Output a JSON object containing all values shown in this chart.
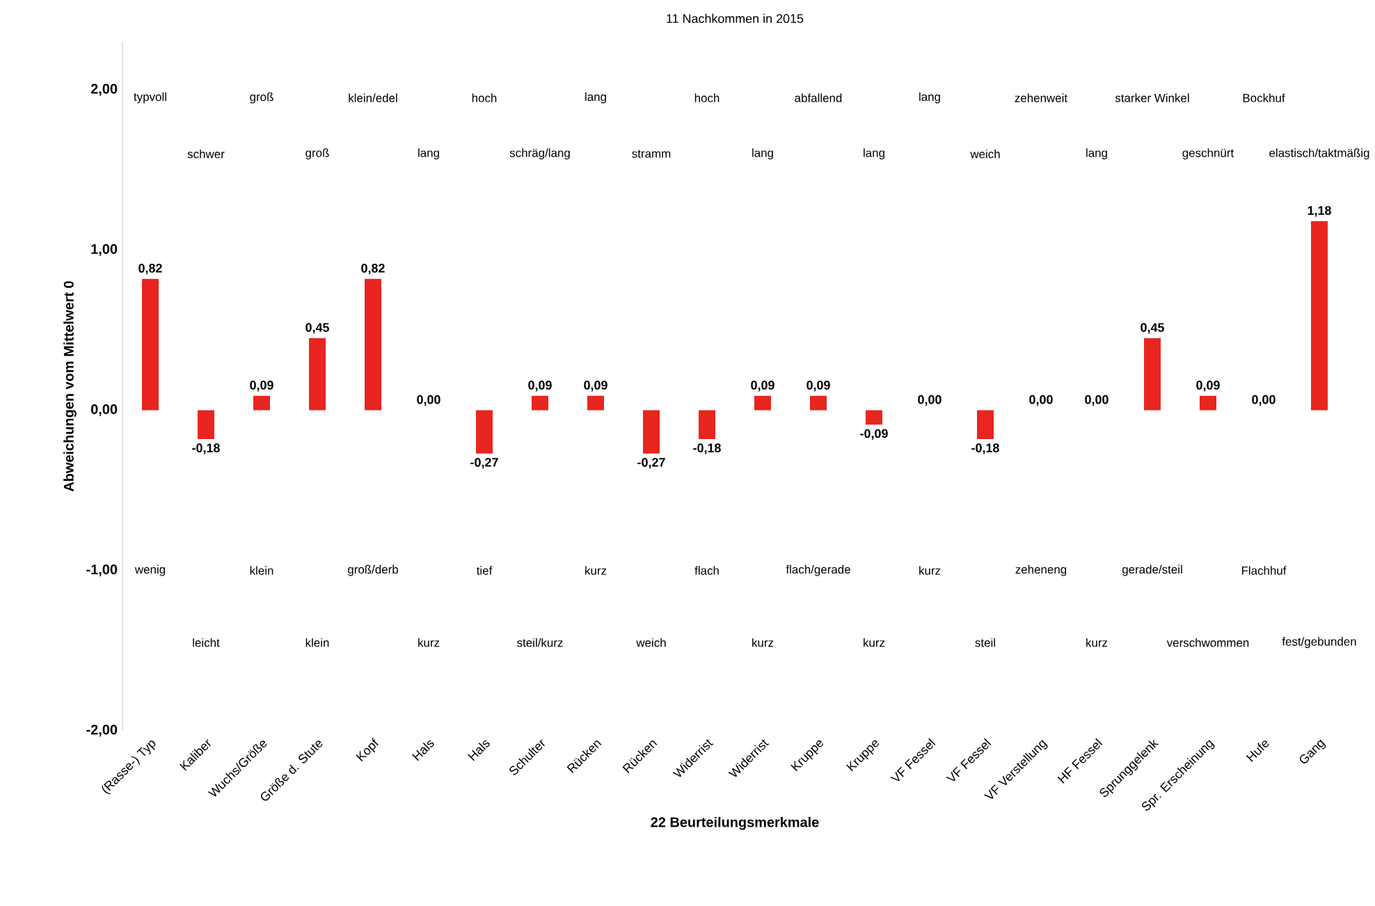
{
  "chart_data": {
    "type": "bar",
    "title": "11 Nachkommen in 2015",
    "xlabel": "22 Beurteilungsmerkmale",
    "ylabel": "Abweichungen vom Mittelwert 0",
    "categories": [
      "(Rasse-) Typ",
      "Kaliber",
      "Wuchs/Größe",
      "Größe d. Stute",
      "Kopf",
      "Hals",
      "Hals",
      "Schulter",
      "Rücken",
      "Rücken",
      "Widerrist",
      "Widerrist",
      "Kruppe",
      "Kruppe",
      "VF Fessel",
      "VF Fessel",
      "VF Verstellung",
      "HF Fessel",
      "Sprunggelenk",
      "Spr. Erscheinung",
      "Hufe",
      "Gang"
    ],
    "values": [
      0.82,
      -0.18,
      0.09,
      0.45,
      0.82,
      0.0,
      -0.27,
      0.09,
      0.09,
      -0.27,
      -0.18,
      0.09,
      0.09,
      -0.09,
      0.0,
      -0.18,
      0.0,
      0.0,
      0.45,
      0.09,
      0.0,
      1.18
    ],
    "value_labels": [
      "0,82",
      "-0,18",
      "0,09",
      "0,45",
      "0,82",
      "0,00",
      "-0,27",
      "0,09",
      "0,09",
      "-0,27",
      "-0,18",
      "0,09",
      "0,09",
      "-0,09",
      "0,00",
      "-0,18",
      "0,00",
      "0,00",
      "0,45",
      "0,09",
      "0,00",
      "1,18"
    ],
    "color": "#e8251f",
    "ylim": [
      -2,
      2.3
    ],
    "yticks": [
      {
        "value": -2,
        "label": "-2,00"
      },
      {
        "value": -1,
        "label": "-1,00"
      },
      {
        "value": 0,
        "label": "0,00"
      },
      {
        "value": 1,
        "label": "1,00"
      },
      {
        "value": 2,
        "label": "2,00"
      }
    ],
    "annotations": [
      "typvoll",
      "schwer",
      "groß",
      "groß",
      "klein/edel",
      "lang",
      "hoch",
      "schräg/lang",
      "lang",
      "stramm",
      "hoch",
      "lang",
      "abfallend",
      "lang",
      "lang",
      "weich",
      "zehenweit",
      "lang",
      "starker Winkel",
      "geschnürt",
      "Bockhuf",
      "elastisch/taktmäßig",
      "wenig",
      "leicht",
      "klein",
      "klein",
      "groß/derb",
      "kurz",
      "tief",
      "steil/kurz",
      "kurz",
      "weich",
      "flach",
      "kurz",
      "flach/gerade",
      "kurz",
      "kurz",
      "steil",
      "zeheneng",
      "kurz",
      "gerade/steil",
      "verschwommen",
      "Flachhuf",
      "fest/gebunden"
    ]
  }
}
